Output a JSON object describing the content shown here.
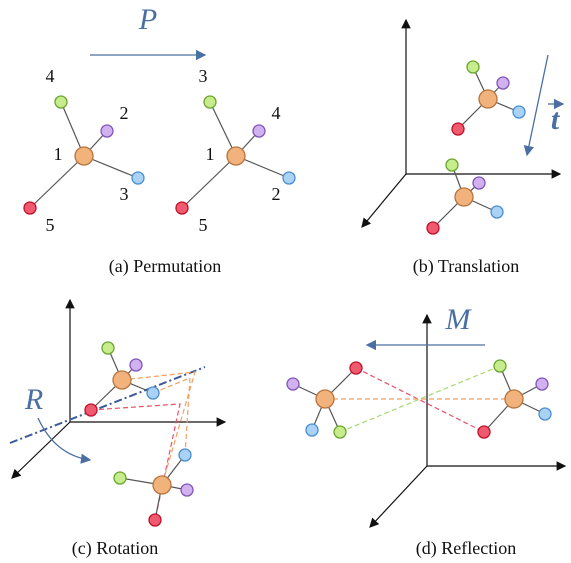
{
  "panel_a": {
    "operator": "P",
    "left_labels": [
      "4",
      "2",
      "1",
      "3",
      "5"
    ],
    "right_labels": [
      "3",
      "4",
      "1",
      "2",
      "5"
    ],
    "caption": "(a) Permutation"
  },
  "panel_b": {
    "operator": "t",
    "caption": "(b) Translation"
  },
  "panel_c": {
    "operator": "R",
    "caption": "(c) Rotation"
  },
  "panel_d": {
    "operator": "M",
    "caption": "(d) Reflection"
  }
}
